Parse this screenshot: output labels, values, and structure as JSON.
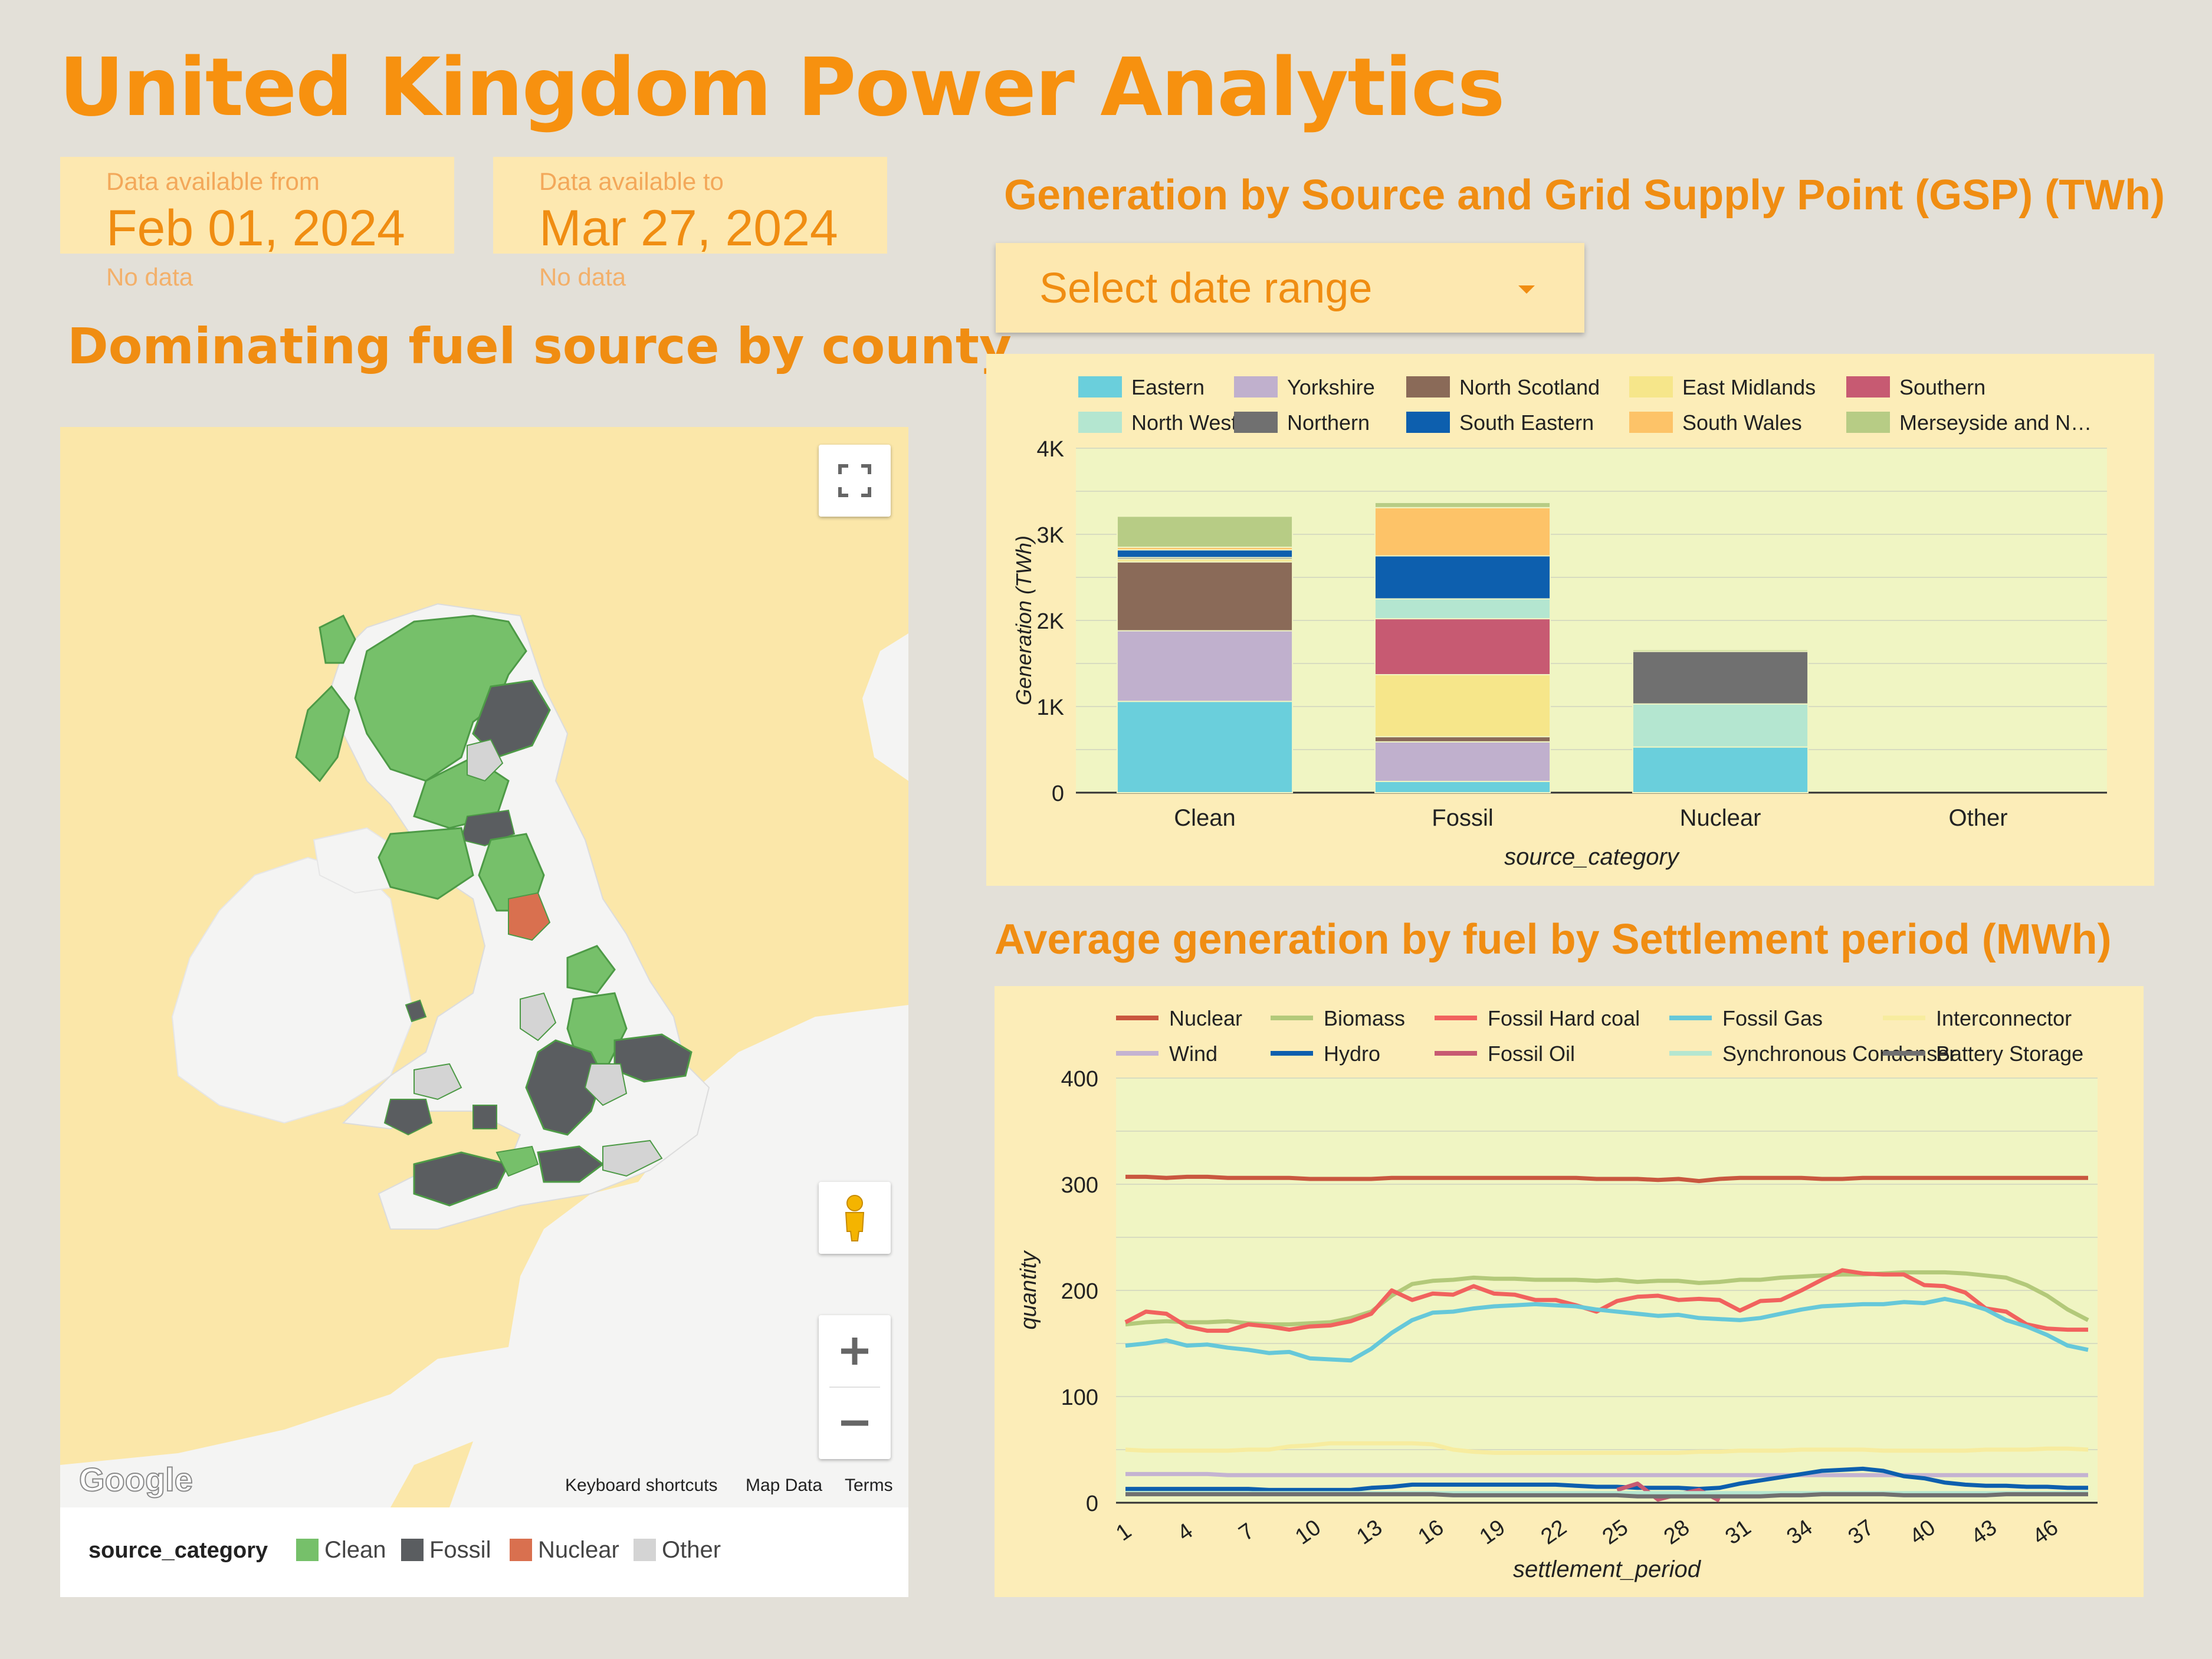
{
  "header": {
    "title": "United Kingdom Power Analytics"
  },
  "scorecards": {
    "from": {
      "label": "Data available from",
      "value": "Feb 01, 2024",
      "subtext": "No data"
    },
    "to": {
      "label": "Data available to",
      "value": "Mar 27, 2024",
      "subtext": "No data"
    }
  },
  "map_section": {
    "title": "Dominating fuel source by county",
    "attribution": {
      "logo": "Google",
      "keyboard": "Keyboard shortcuts",
      "map_data": "Map Data",
      "terms": "Terms"
    },
    "legend": {
      "title": "source_category",
      "items": [
        {
          "label": "Clean",
          "color": "#76c06a"
        },
        {
          "label": "Fossil",
          "color": "#5a5d60"
        },
        {
          "label": "Nuclear",
          "color": "#d9704f"
        },
        {
          "label": "Other",
          "color": "#d4d4d4"
        }
      ]
    },
    "icons": [
      "fullscreen-icon",
      "pegman-icon",
      "zoom-in-icon",
      "zoom-out-icon"
    ]
  },
  "gsp_section": {
    "title": "Generation by Source and Grid Supply Point (GSP) (TWh)",
    "date_picker": {
      "label": "Select date range"
    }
  },
  "settlement_section": {
    "title": "Average generation by fuel by Settlement period (MWh)"
  },
  "chart_data": [
    {
      "type": "bar",
      "stacked": true,
      "xlabel": "source_category",
      "ylabel": "Generation (TWh)",
      "ylim": [
        0,
        4000
      ],
      "yticks": [
        "0",
        "1K",
        "2K",
        "3K",
        "4K"
      ],
      "categories": [
        "Clean",
        "Fossil",
        "Nuclear",
        "Other"
      ],
      "legend_position": "top",
      "series": [
        {
          "name": "Eastern",
          "color": "#6acfdc",
          "values": [
            1060,
            130,
            530,
            0
          ]
        },
        {
          "name": "Yorkshire",
          "color": "#c0b0cd",
          "values": [
            820,
            460,
            0,
            0
          ]
        },
        {
          "name": "North Scotland",
          "color": "#8a6a58",
          "values": [
            800,
            60,
            0,
            0
          ]
        },
        {
          "name": "East Midlands",
          "color": "#f6e68a",
          "values": [
            30,
            720,
            0,
            0
          ]
        },
        {
          "name": "Southern",
          "color": "#c75a72",
          "values": [
            0,
            650,
            0,
            0
          ]
        },
        {
          "name": "North Western",
          "color": "#b4e6d0",
          "values": [
            0,
            230,
            500,
            0
          ]
        },
        {
          "name": "Northern",
          "color": "#707070",
          "values": [
            20,
            0,
            610,
            0
          ]
        },
        {
          "name": "South Eastern",
          "color": "#0d5fae",
          "values": [
            90,
            500,
            0,
            0
          ]
        },
        {
          "name": "South Wales",
          "color": "#fdc368",
          "values": [
            30,
            560,
            0,
            0
          ]
        },
        {
          "name": "Merseyside and N…",
          "color": "#b7cc85",
          "values": [
            360,
            60,
            20,
            0
          ]
        }
      ]
    },
    {
      "type": "line",
      "xlabel": "settlement_period",
      "ylabel": "quantity",
      "ylim": [
        0,
        400
      ],
      "yticks": [
        0,
        100,
        200,
        300,
        400
      ],
      "xticks": [
        1,
        4,
        7,
        10,
        13,
        16,
        19,
        22,
        25,
        28,
        31,
        34,
        37,
        40,
        43,
        46
      ],
      "x_range": [
        1,
        48
      ],
      "legend_position": "top",
      "series": [
        {
          "name": "Nuclear",
          "color": "#c9573f",
          "values": [
            307,
            307,
            306,
            307,
            307,
            306,
            306,
            306,
            306,
            305,
            305,
            305,
            305,
            306,
            306,
            306,
            306,
            306,
            306,
            306,
            306,
            306,
            306,
            305,
            305,
            305,
            304,
            305,
            303,
            305,
            306,
            306,
            306,
            306,
            305,
            305,
            306,
            306,
            306,
            306,
            306,
            306,
            306,
            306,
            306,
            306,
            306,
            306
          ]
        },
        {
          "name": "Biomass",
          "color": "#b3c97a",
          "values": [
            168,
            170,
            171,
            170,
            170,
            171,
            169,
            168,
            168,
            169,
            170,
            174,
            180,
            195,
            206,
            209,
            210,
            212,
            211,
            211,
            210,
            210,
            210,
            209,
            210,
            208,
            209,
            209,
            207,
            208,
            210,
            210,
            212,
            213,
            214,
            215,
            215,
            216,
            217,
            217,
            217,
            216,
            214,
            212,
            205,
            195,
            182,
            172
          ]
        },
        {
          "name": "Fossil Hard coal",
          "color": "#f1625e",
          "values": [
            170,
            180,
            178,
            166,
            162,
            162,
            168,
            166,
            163,
            166,
            167,
            171,
            178,
            200,
            191,
            197,
            196,
            204,
            197,
            196,
            191,
            191,
            186,
            180,
            190,
            194,
            195,
            191,
            192,
            191,
            181,
            190,
            191,
            200,
            210,
            219,
            216,
            215,
            215,
            205,
            204,
            198,
            183,
            180,
            168,
            164,
            163,
            163
          ]
        },
        {
          "name": "Fossil Gas",
          "color": "#66c8d9",
          "values": [
            148,
            150,
            153,
            148,
            149,
            146,
            144,
            141,
            142,
            136,
            135,
            134,
            145,
            160,
            172,
            179,
            180,
            183,
            185,
            186,
            187,
            186,
            185,
            182,
            180,
            178,
            176,
            177,
            174,
            173,
            172,
            174,
            178,
            182,
            185,
            186,
            187,
            187,
            189,
            188,
            192,
            188,
            182,
            172,
            166,
            158,
            148,
            144
          ]
        },
        {
          "name": "Interconnector",
          "color": "#f7ec9f",
          "values": [
            50,
            49,
            49,
            49,
            49,
            49,
            50,
            50,
            53,
            54,
            56,
            56,
            56,
            56,
            56,
            55,
            50,
            48,
            47,
            47,
            47,
            47,
            47,
            47,
            47,
            47,
            47,
            47,
            48,
            48,
            49,
            49,
            49,
            50,
            50,
            50,
            50,
            49,
            49,
            49,
            49,
            49,
            50,
            50,
            50,
            51,
            51,
            50
          ]
        },
        {
          "name": "Wind",
          "color": "#c4b3d1",
          "values": [
            27,
            27,
            27,
            27,
            27,
            26,
            26,
            26,
            26,
            26,
            26,
            26,
            26,
            26,
            26,
            26,
            26,
            26,
            26,
            26,
            26,
            26,
            26,
            26,
            26,
            26,
            26,
            26,
            26,
            26,
            26,
            26,
            26,
            26,
            26,
            26,
            26,
            26,
            26,
            26,
            26,
            26,
            26,
            26,
            26,
            26,
            26,
            26
          ]
        },
        {
          "name": "Hydro",
          "color": "#0d5fae",
          "values": [
            13,
            13,
            13,
            13,
            13,
            13,
            13,
            12,
            12,
            12,
            12,
            12,
            14,
            15,
            17,
            17,
            17,
            17,
            17,
            17,
            17,
            17,
            16,
            15,
            15,
            14,
            14,
            14,
            13,
            14,
            18,
            21,
            24,
            27,
            30,
            31,
            32,
            30,
            25,
            23,
            19,
            17,
            16,
            16,
            15,
            15,
            14,
            14
          ]
        },
        {
          "name": "Fossil Oil",
          "color": "#c75a72",
          "values": [
            null,
            null,
            null,
            null,
            null,
            null,
            null,
            null,
            null,
            null,
            null,
            null,
            null,
            null,
            null,
            null,
            null,
            null,
            null,
            null,
            null,
            null,
            null,
            null,
            12,
            18,
            3,
            8,
            12,
            2,
            null,
            null,
            null,
            null,
            null,
            null,
            null,
            null,
            null,
            null,
            null,
            null,
            null,
            null,
            null,
            null,
            null,
            null
          ]
        },
        {
          "name": "Synchronous Condenser",
          "color": "#b4e6d0",
          "values": [
            9,
            9,
            9,
            9,
            9,
            9,
            9,
            9,
            9,
            9,
            9,
            9,
            9,
            9,
            9,
            9,
            9,
            9,
            9,
            9,
            9,
            9,
            9,
            9,
            9,
            9,
            9,
            9,
            9,
            9,
            9,
            9,
            9,
            9,
            9,
            9,
            9,
            9,
            9,
            9,
            9,
            9,
            9,
            9,
            9,
            9,
            9,
            9
          ]
        },
        {
          "name": "Battery Storage",
          "color": "#707070",
          "values": [
            8,
            8,
            8,
            8,
            8,
            8,
            8,
            8,
            8,
            8,
            8,
            8,
            8,
            8,
            8,
            8,
            7,
            7,
            7,
            7,
            7,
            7,
            7,
            7,
            7,
            6,
            6,
            6,
            6,
            6,
            6,
            6,
            7,
            7,
            8,
            8,
            8,
            8,
            7,
            7,
            7,
            7,
            7,
            8,
            8,
            8,
            8,
            8
          ]
        }
      ]
    }
  ]
}
